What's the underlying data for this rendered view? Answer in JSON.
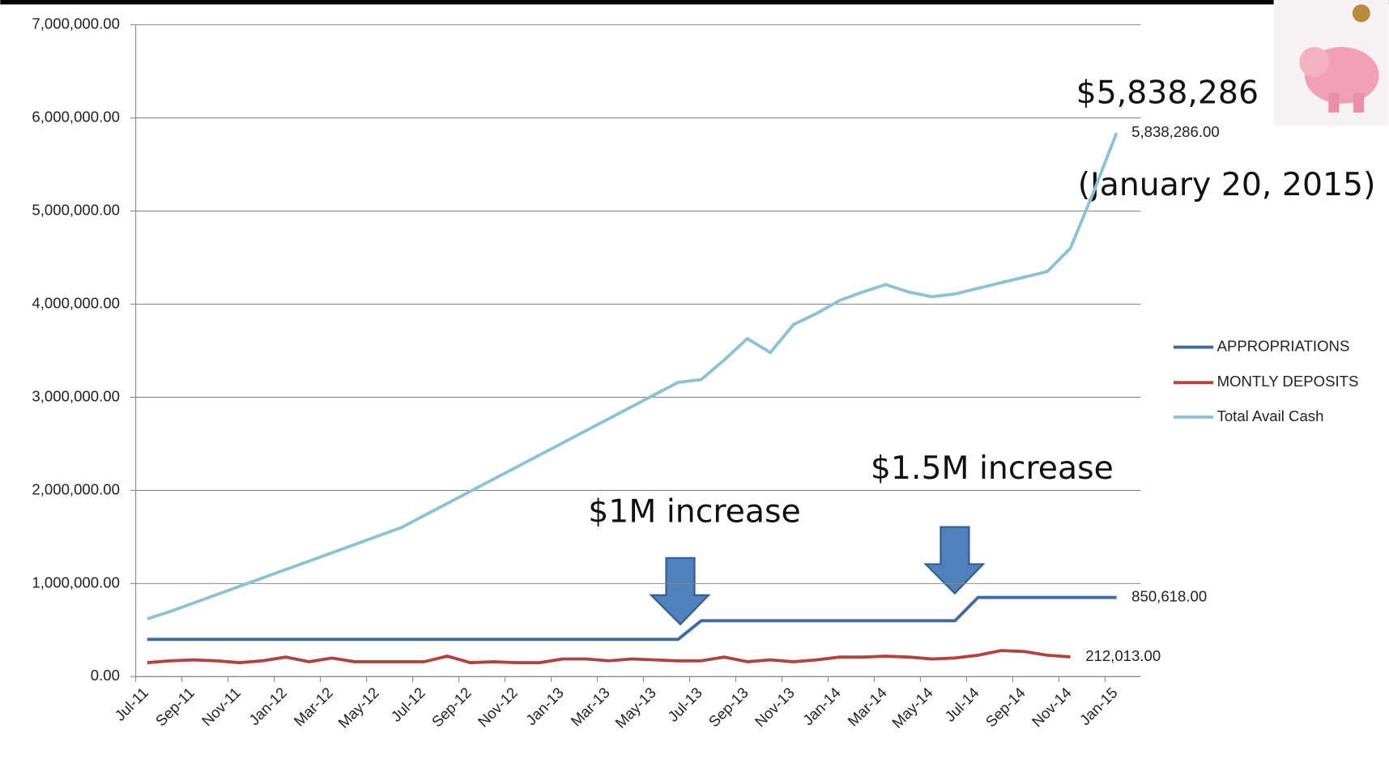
{
  "chart_data": {
    "type": "line",
    "categories": [
      "Jul-11",
      null,
      "Sep-11",
      null,
      "Nov-11",
      null,
      "Jan-12",
      null,
      "Mar-12",
      null,
      "May-12",
      null,
      "Jul-12",
      null,
      "Sep-12",
      null,
      "Nov-12",
      null,
      "Jan-13",
      null,
      "Mar-13",
      null,
      "May-13",
      null,
      "Jul-13",
      null,
      "Sep-13",
      null,
      "Nov-13",
      null,
      "Jan-14",
      null,
      "Mar-14",
      null,
      "May-14",
      null,
      "Jul-14",
      null,
      "Sep-14",
      null,
      "Nov-14",
      null,
      "Jan-15"
    ],
    "series": [
      {
        "name": "APPROPRIATIONS",
        "color": "#3d6aa3",
        "values": [
          400000,
          400000,
          400000,
          400000,
          400000,
          400000,
          400000,
          400000,
          400000,
          400000,
          400000,
          400000,
          400000,
          400000,
          400000,
          400000,
          400000,
          400000,
          400000,
          400000,
          400000,
          400000,
          400000,
          400000,
          600000,
          600000,
          600000,
          600000,
          600000,
          600000,
          600000,
          600000,
          600000,
          600000,
          600000,
          600000,
          850618,
          850618,
          850618,
          850618,
          850618,
          850618,
          850618
        ],
        "value_labels": [
          null,
          null,
          null,
          null,
          null,
          null,
          null,
          null,
          null,
          null,
          null,
          null,
          null,
          null,
          null,
          null,
          null,
          null,
          null,
          null,
          null,
          null,
          null,
          null,
          null,
          null,
          null,
          null,
          null,
          null,
          null,
          null,
          null,
          null,
          null,
          null,
          null,
          null,
          null,
          null,
          null,
          null,
          "850,618.00"
        ]
      },
      {
        "name": "MONTLY DEPOSITS",
        "color": "#b5413f",
        "values": [
          150000,
          170000,
          180000,
          170000,
          150000,
          170000,
          210000,
          160000,
          200000,
          160000,
          160000,
          160000,
          160000,
          220000,
          150000,
          160000,
          150000,
          150000,
          190000,
          190000,
          170000,
          190000,
          180000,
          170000,
          170000,
          210000,
          160000,
          180000,
          160000,
          180000,
          210000,
          210000,
          220000,
          210000,
          190000,
          200000,
          230000,
          280000,
          270000,
          230000,
          212013,
          null,
          null
        ],
        "value_labels": [
          null,
          null,
          null,
          null,
          null,
          null,
          null,
          null,
          null,
          null,
          null,
          null,
          null,
          null,
          null,
          null,
          null,
          null,
          null,
          null,
          null,
          null,
          null,
          null,
          null,
          null,
          null,
          null,
          null,
          null,
          null,
          null,
          null,
          null,
          null,
          null,
          null,
          null,
          null,
          null,
          "212,013.00",
          null,
          null
        ]
      },
      {
        "name": "Total Avail Cash",
        "color": "#8cc2d4",
        "values": [
          620000,
          700000,
          790000,
          880000,
          970000,
          1060000,
          1150000,
          1240000,
          1330000,
          1420000,
          1510000,
          1600000,
          1730000,
          1860000,
          1990000,
          2120000,
          2250000,
          2380000,
          2510000,
          2640000,
          2770000,
          2900000,
          3030000,
          3160000,
          3190000,
          3400000,
          3630000,
          3480000,
          3780000,
          3900000,
          4040000,
          4130000,
          4210000,
          4130000,
          4080000,
          4110000,
          4170000,
          4230000,
          4290000,
          4350000,
          4600000,
          5200000,
          5838286
        ],
        "value_labels": [
          null,
          null,
          null,
          null,
          null,
          null,
          null,
          null,
          null,
          null,
          null,
          null,
          null,
          null,
          null,
          null,
          null,
          null,
          null,
          null,
          null,
          null,
          null,
          null,
          null,
          null,
          null,
          null,
          null,
          null,
          null,
          null,
          null,
          null,
          null,
          null,
          null,
          null,
          null,
          null,
          null,
          null,
          "5,838,286.00"
        ]
      }
    ],
    "ylim": [
      0,
      7000000
    ],
    "yticks": [
      {
        "value": 0,
        "label": "0.00"
      },
      {
        "value": 1000000,
        "label": "1,000,000.00"
      },
      {
        "value": 2000000,
        "label": "2,000,000.00"
      },
      {
        "value": 3000000,
        "label": "3,000,000.00"
      },
      {
        "value": 4000000,
        "label": "4,000,000.00"
      },
      {
        "value": 5000000,
        "label": "5,000,000.00"
      },
      {
        "value": 6000000,
        "label": "6,000,000.00"
      },
      {
        "value": 7000000,
        "label": "7,000,000.00"
      }
    ],
    "grid": true,
    "legend": "right",
    "annotations": [
      "$5,838,286",
      "(January 20, 2015)",
      "$1M increase",
      "$1.5M increase"
    ]
  }
}
